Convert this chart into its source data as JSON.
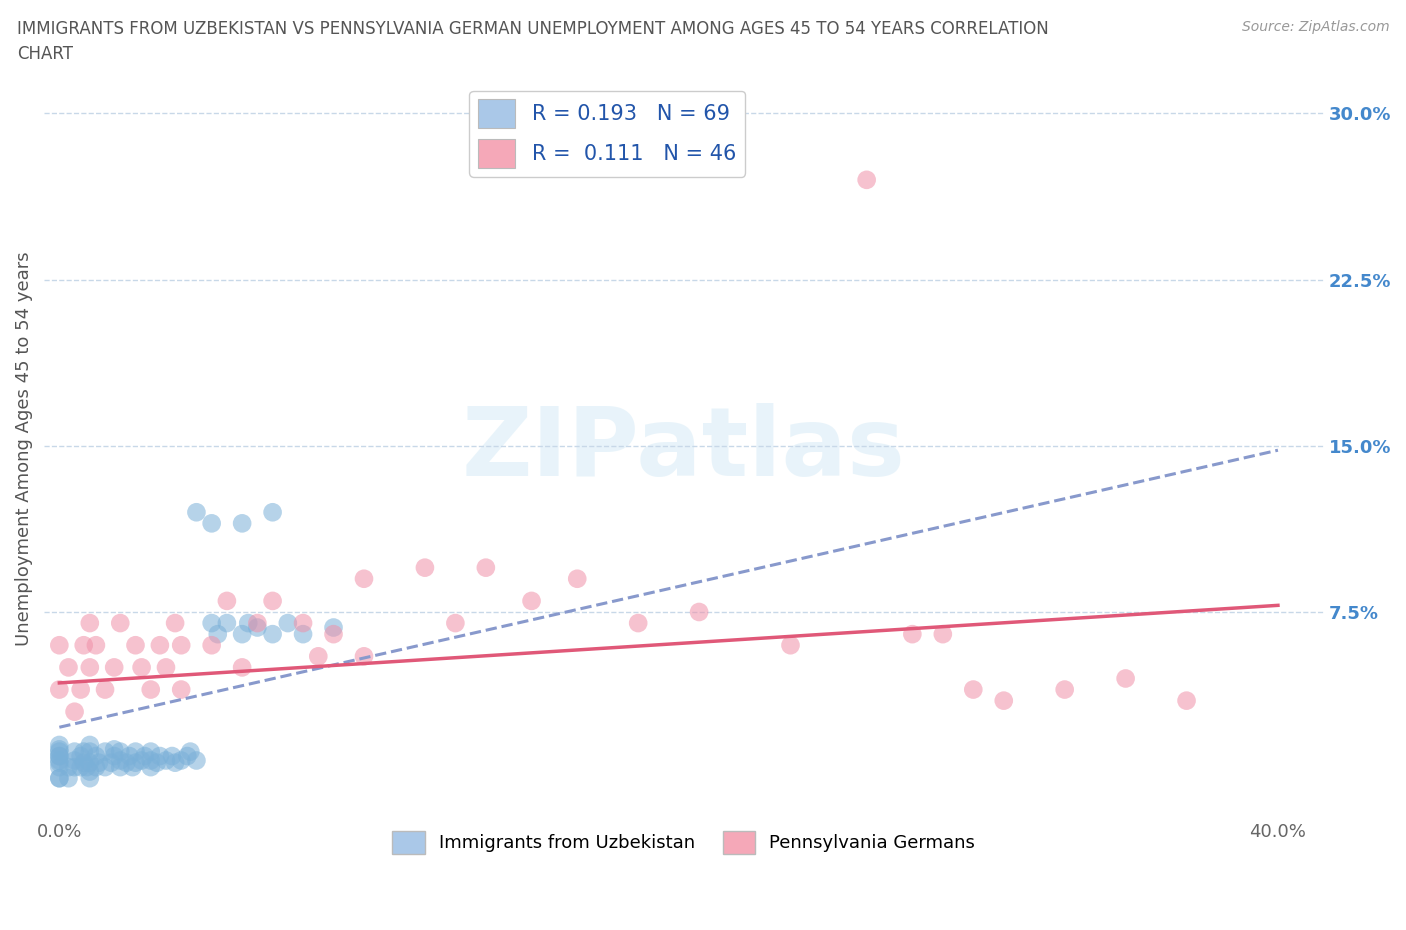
{
  "title_line1": "IMMIGRANTS FROM UZBEKISTAN VS PENNSYLVANIA GERMAN UNEMPLOYMENT AMONG AGES 45 TO 54 YEARS CORRELATION",
  "title_line2": "CHART",
  "source_text": "Source: ZipAtlas.com",
  "ylabel": "Unemployment Among Ages 45 to 54 years",
  "xlim": [
    -0.005,
    0.415
  ],
  "ylim": [
    -0.018,
    0.315
  ],
  "xtick_positions": [
    0.0,
    0.4
  ],
  "xticklabels": [
    "0.0%",
    "40.0%"
  ],
  "ytick_positions": [
    0.075,
    0.15,
    0.225,
    0.3
  ],
  "yticklabels": [
    "7.5%",
    "15.0%",
    "22.5%",
    "30.0%"
  ],
  "series1_name": "Immigrants from Uzbekistan",
  "series2_name": "Pennsylvania Germans",
  "series1_color": "#7ab0d8",
  "series2_color": "#f090a8",
  "trendline1_color": "#8899cc",
  "trendline2_color": "#e05878",
  "grid_color": "#c8d8e8",
  "background_color": "#ffffff",
  "watermark": "ZIPatlas",
  "legend1_color": "#aac8e8",
  "legend2_color": "#f5a8b8",
  "R1": 0.193,
  "N1": 69,
  "R2": 0.111,
  "N2": 46,
  "uzbek_x": [
    0.0,
    0.0,
    0.0,
    0.0,
    0.0,
    0.0,
    0.0,
    0.0,
    0.0,
    0.0,
    0.003,
    0.003,
    0.005,
    0.005,
    0.005,
    0.007,
    0.007,
    0.008,
    0.008,
    0.009,
    0.01,
    0.01,
    0.01,
    0.01,
    0.01,
    0.012,
    0.012,
    0.013,
    0.015,
    0.015,
    0.017,
    0.018,
    0.018,
    0.02,
    0.02,
    0.02,
    0.022,
    0.023,
    0.024,
    0.025,
    0.025,
    0.027,
    0.028,
    0.03,
    0.03,
    0.03,
    0.032,
    0.033,
    0.035,
    0.037,
    0.038,
    0.04,
    0.042,
    0.043,
    0.045,
    0.05,
    0.052,
    0.055,
    0.06,
    0.062,
    0.065,
    0.07,
    0.075,
    0.08,
    0.09,
    0.045,
    0.05,
    0.06,
    0.07
  ],
  "uzbek_y": [
    0.0,
    0.0,
    0.005,
    0.007,
    0.008,
    0.01,
    0.01,
    0.012,
    0.013,
    0.015,
    0.0,
    0.005,
    0.005,
    0.008,
    0.012,
    0.005,
    0.01,
    0.007,
    0.012,
    0.005,
    0.0,
    0.003,
    0.007,
    0.012,
    0.015,
    0.005,
    0.01,
    0.007,
    0.005,
    0.012,
    0.007,
    0.01,
    0.013,
    0.005,
    0.008,
    0.012,
    0.007,
    0.01,
    0.005,
    0.007,
    0.012,
    0.008,
    0.01,
    0.005,
    0.008,
    0.012,
    0.007,
    0.01,
    0.008,
    0.01,
    0.007,
    0.008,
    0.01,
    0.012,
    0.008,
    0.07,
    0.065,
    0.07,
    0.065,
    0.07,
    0.068,
    0.065,
    0.07,
    0.065,
    0.068,
    0.12,
    0.115,
    0.115,
    0.12
  ],
  "penn_x": [
    0.0,
    0.0,
    0.003,
    0.005,
    0.007,
    0.008,
    0.01,
    0.01,
    0.012,
    0.015,
    0.018,
    0.02,
    0.025,
    0.027,
    0.03,
    0.033,
    0.035,
    0.038,
    0.04,
    0.04,
    0.05,
    0.055,
    0.06,
    0.065,
    0.07,
    0.08,
    0.085,
    0.09,
    0.1,
    0.1,
    0.12,
    0.13,
    0.14,
    0.155,
    0.17,
    0.19,
    0.21,
    0.24,
    0.265,
    0.28,
    0.29,
    0.3,
    0.31,
    0.33,
    0.35,
    0.37
  ],
  "penn_y": [
    0.04,
    0.06,
    0.05,
    0.03,
    0.04,
    0.06,
    0.05,
    0.07,
    0.06,
    0.04,
    0.05,
    0.07,
    0.06,
    0.05,
    0.04,
    0.06,
    0.05,
    0.07,
    0.04,
    0.06,
    0.06,
    0.08,
    0.05,
    0.07,
    0.08,
    0.07,
    0.055,
    0.065,
    0.09,
    0.055,
    0.095,
    0.07,
    0.095,
    0.08,
    0.09,
    0.07,
    0.075,
    0.06,
    0.27,
    0.065,
    0.065,
    0.04,
    0.035,
    0.04,
    0.045,
    0.035
  ],
  "trend1_x0": 0.0,
  "trend1_y0": 0.023,
  "trend1_x1": 0.4,
  "trend1_y1": 0.148,
  "trend2_x0": 0.0,
  "trend2_y0": 0.043,
  "trend2_x1": 0.4,
  "trend2_y1": 0.078
}
